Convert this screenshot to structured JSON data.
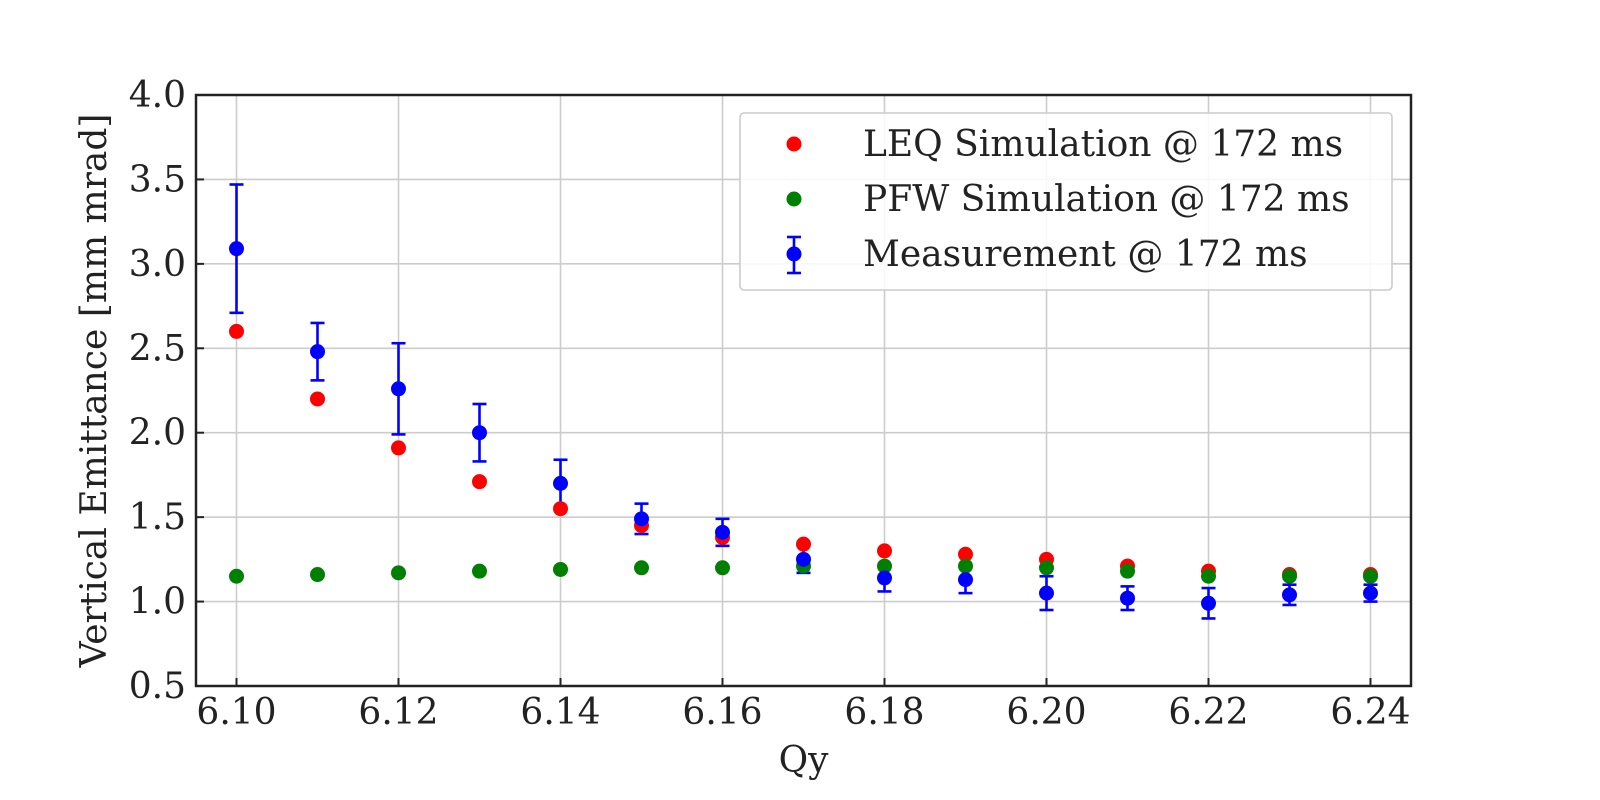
{
  "chart_data": {
    "type": "scatter",
    "title": "",
    "xlabel": "Qy",
    "ylabel": "Vertical Emittance [mm mrad]",
    "xlim": [
      6.095,
      6.245
    ],
    "ylim": [
      0.5,
      4.0
    ],
    "xticks": [
      6.1,
      6.12,
      6.14,
      6.16,
      6.18,
      6.2,
      6.22,
      6.24
    ],
    "xtick_labels": [
      "6.10",
      "6.12",
      "6.14",
      "6.16",
      "6.18",
      "6.20",
      "6.22",
      "6.24"
    ],
    "yticks": [
      0.5,
      1.0,
      1.5,
      2.0,
      2.5,
      3.0,
      3.5,
      4.0
    ],
    "ytick_labels": [
      "0.5",
      "1.0",
      "1.5",
      "2.0",
      "2.5",
      "3.0",
      "3.5",
      "4.0"
    ],
    "grid": true,
    "legend_position": "top-right",
    "x": [
      6.1,
      6.11,
      6.12,
      6.13,
      6.14,
      6.15,
      6.16,
      6.17,
      6.18,
      6.19,
      6.2,
      6.21,
      6.22,
      6.23,
      6.24
    ],
    "series": [
      {
        "name": "LEQ Simulation @ 172 ms",
        "color": "#ff0000",
        "values": [
          2.6,
          2.2,
          1.91,
          1.71,
          1.55,
          1.45,
          1.38,
          1.34,
          1.3,
          1.28,
          1.25,
          1.21,
          1.18,
          1.16,
          1.16
        ]
      },
      {
        "name": "PFW Simulation @ 172 ms",
        "color": "#008000",
        "values": [
          1.15,
          1.16,
          1.17,
          1.18,
          1.19,
          1.2,
          1.2,
          1.21,
          1.21,
          1.21,
          1.2,
          1.18,
          1.15,
          1.15,
          1.15
        ]
      },
      {
        "name": "Measurement @ 172 ms",
        "color": "#0000ff",
        "error_bars": true,
        "values": [
          3.09,
          2.48,
          2.26,
          2.0,
          1.7,
          1.49,
          1.41,
          1.25,
          1.14,
          1.13,
          1.05,
          1.02,
          0.99,
          1.04,
          1.05
        ],
        "errors": [
          0.38,
          0.17,
          0.27,
          0.17,
          0.14,
          0.09,
          0.08,
          0.08,
          0.08,
          0.08,
          0.1,
          0.07,
          0.09,
          0.06,
          0.05
        ]
      }
    ]
  }
}
